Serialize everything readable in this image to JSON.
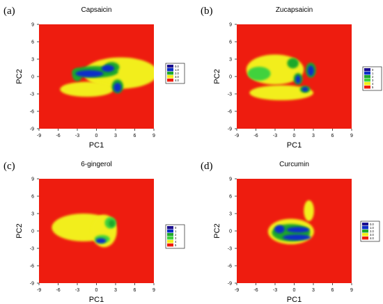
{
  "figure": {
    "panels": [
      {
        "letter": "(a)",
        "title": "Capsaicin",
        "xlabel": "PC1",
        "ylabel": "PC2",
        "ticks": [
          "-9",
          "-6",
          "-3",
          "0",
          "3",
          "6",
          "9"
        ],
        "legend": [
          "0.0",
          "1.0",
          "2.0",
          "3.0",
          "4.0"
        ]
      },
      {
        "letter": "(b)",
        "title": "Zucapsaicin",
        "xlabel": "PC1",
        "ylabel": "PC2",
        "ticks": [
          "-9",
          "-6",
          "-3",
          "0",
          "3",
          "6",
          "9"
        ],
        "legend": [
          "0",
          "1",
          "2",
          "3",
          "4",
          "5"
        ]
      },
      {
        "letter": "(c)",
        "title": "6-gingerol",
        "xlabel": "PC1",
        "ylabel": "PC2",
        "ticks": [
          "-9",
          "-6",
          "-3",
          "0",
          "3",
          "6",
          "9"
        ],
        "legend": [
          "0",
          "1",
          "2",
          "3",
          "4",
          "5"
        ]
      },
      {
        "letter": "(d)",
        "title": "Curcumin",
        "xlabel": "PC1",
        "ylabel": "PC2",
        "ticks": [
          "-9",
          "-6",
          "-3",
          "0",
          "3",
          "6",
          "9"
        ],
        "legend": [
          "0.0",
          "1.0",
          "2.0",
          "3.0",
          "4.0"
        ]
      }
    ]
  },
  "chart_data": [
    {
      "type": "heatmap",
      "title": "Capsaicin",
      "xlabel": "PC1",
      "ylabel": "PC2",
      "xlim": [
        -9,
        9
      ],
      "ylim": [
        -9,
        9
      ],
      "xticks": [
        -9,
        -6,
        -3,
        0,
        3,
        6,
        9
      ],
      "yticks": [
        -9,
        -6,
        -3,
        0,
        3,
        6,
        9
      ],
      "colorscale": [
        {
          "value": 0.0,
          "color": "#1a0d8f"
        },
        {
          "value": 1.0,
          "color": "#0a2fc8"
        },
        {
          "value": 2.0,
          "color": "#1fa82a"
        },
        {
          "value": 3.0,
          "color": "#f2ee1a"
        },
        {
          "value": 4.0,
          "color": "#ee1c0f"
        }
      ],
      "regions": [
        {
          "x": 3.8,
          "y": 0.6,
          "rx": 5.8,
          "ry": 2.7,
          "level": 3.0
        },
        {
          "x": -1.5,
          "y": -2.2,
          "rx": 4.2,
          "ry": 1.3,
          "level": 3.0
        },
        {
          "x": -0.2,
          "y": 0.8,
          "rx": 3.6,
          "ry": 1.0,
          "level": 2.0
        },
        {
          "x": 2.4,
          "y": 1.6,
          "rx": 1.2,
          "ry": 0.9,
          "level": 2.0
        },
        {
          "x": 3.3,
          "y": -1.7,
          "rx": 0.9,
          "ry": 1.2,
          "level": 2.0
        },
        {
          "x": -3.0,
          "y": 0.3,
          "rx": 0.8,
          "ry": 1.1,
          "level": 2.0
        },
        {
          "x": -1.1,
          "y": 0.5,
          "rx": 2.2,
          "ry": 0.6,
          "level": 1.0
        },
        {
          "x": 1.8,
          "y": 1.4,
          "rx": 1.0,
          "ry": 0.6,
          "level": 1.0
        },
        {
          "x": 3.3,
          "y": -1.9,
          "rx": 0.6,
          "ry": 0.8,
          "level": 1.0
        }
      ]
    },
    {
      "type": "heatmap",
      "title": "Zucapsaicin",
      "xlabel": "PC1",
      "ylabel": "PC2",
      "xlim": [
        -9,
        9
      ],
      "ylim": [
        -9,
        9
      ],
      "xticks": [
        -9,
        -6,
        -3,
        0,
        3,
        6,
        9
      ],
      "yticks": [
        -9,
        -6,
        -3,
        0,
        3,
        6,
        9
      ],
      "colorscale": [
        {
          "value": 0,
          "color": "#1a0d8f"
        },
        {
          "value": 1,
          "color": "#0a2fc8"
        },
        {
          "value": 2,
          "color": "#1fa82a"
        },
        {
          "value": 3,
          "color": "#3fd23c"
        },
        {
          "value": 4,
          "color": "#f2ee1a"
        },
        {
          "value": 5,
          "color": "#ee1c0f"
        }
      ],
      "regions": [
        {
          "x": -3.0,
          "y": 1.2,
          "rx": 4.5,
          "ry": 2.6,
          "level": 4
        },
        {
          "x": -2.0,
          "y": -2.8,
          "rx": 5.0,
          "ry": 1.3,
          "level": 4
        },
        {
          "x": -5.5,
          "y": 0.5,
          "rx": 1.8,
          "ry": 1.2,
          "level": 3
        },
        {
          "x": -0.2,
          "y": 2.3,
          "rx": 0.9,
          "ry": 0.9,
          "level": 2
        },
        {
          "x": 2.6,
          "y": 1.1,
          "rx": 0.8,
          "ry": 1.3,
          "level": 2
        },
        {
          "x": 1.7,
          "y": -2.2,
          "rx": 0.8,
          "ry": 0.6,
          "level": 2
        },
        {
          "x": 0.6,
          "y": -0.4,
          "rx": 0.7,
          "ry": 1.0,
          "level": 2
        },
        {
          "x": 0.6,
          "y": -0.5,
          "rx": 0.4,
          "ry": 0.7,
          "level": 1
        },
        {
          "x": 2.6,
          "y": 1.0,
          "rx": 0.5,
          "ry": 0.9,
          "level": 1
        },
        {
          "x": 1.7,
          "y": -2.2,
          "rx": 0.5,
          "ry": 0.4,
          "level": 1
        }
      ]
    },
    {
      "type": "heatmap",
      "title": "6-gingerol",
      "xlabel": "PC1",
      "ylabel": "PC2",
      "xlim": [
        -9,
        9
      ],
      "ylim": [
        -9,
        9
      ],
      "xticks": [
        -9,
        -6,
        -3,
        0,
        3,
        6,
        9
      ],
      "yticks": [
        -9,
        -6,
        -3,
        0,
        3,
        6,
        9
      ],
      "colorscale": [
        {
          "value": 0,
          "color": "#1a0d8f"
        },
        {
          "value": 1,
          "color": "#0a2fc8"
        },
        {
          "value": 2,
          "color": "#1fa82a"
        },
        {
          "value": 3,
          "color": "#3fd23c"
        },
        {
          "value": 4,
          "color": "#f2ee1a"
        },
        {
          "value": 5,
          "color": "#ee1c0f"
        }
      ],
      "regions": [
        {
          "x": -2.0,
          "y": 0.6,
          "rx": 5.0,
          "ry": 2.4,
          "level": 4
        },
        {
          "x": 1.2,
          "y": 0.0,
          "rx": 2.0,
          "ry": 2.8,
          "level": 4
        },
        {
          "x": 2.2,
          "y": 1.4,
          "rx": 0.9,
          "ry": 1.0,
          "level": 3
        },
        {
          "x": 0.9,
          "y": -1.4,
          "rx": 1.2,
          "ry": 0.7,
          "level": 3
        },
        {
          "x": 0.7,
          "y": -1.7,
          "rx": 0.8,
          "ry": 0.45,
          "level": 1
        },
        {
          "x": 2.4,
          "y": 1.3,
          "rx": 0.5,
          "ry": 0.6,
          "level": 2
        }
      ]
    },
    {
      "type": "heatmap",
      "title": "Curcumin",
      "xlabel": "PC1",
      "ylabel": "PC2",
      "xlim": [
        -9,
        9
      ],
      "ylim": [
        -9,
        9
      ],
      "xticks": [
        -9,
        -6,
        -3,
        0,
        3,
        6,
        9
      ],
      "yticks": [
        -9,
        -6,
        -3,
        0,
        3,
        6,
        9
      ],
      "colorscale": [
        {
          "value": 0.0,
          "color": "#1a0d8f"
        },
        {
          "value": 1.0,
          "color": "#0a2fc8"
        },
        {
          "value": 2.0,
          "color": "#1fa82a"
        },
        {
          "value": 3.0,
          "color": "#f2ee1a"
        },
        {
          "value": 4.0,
          "color": "#ee1c0f"
        }
      ],
      "regions": [
        {
          "x": -0.5,
          "y": -0.1,
          "rx": 3.6,
          "ry": 2.2,
          "level": 3.0
        },
        {
          "x": 2.3,
          "y": 3.5,
          "rx": 0.8,
          "ry": 1.8,
          "level": 3.0
        },
        {
          "x": -0.5,
          "y": -0.3,
          "rx": 3.0,
          "ry": 1.5,
          "level": 2.0
        },
        {
          "x": -2.3,
          "y": 0.3,
          "rx": 0.8,
          "ry": 0.7,
          "level": 1.0
        },
        {
          "x": 0.4,
          "y": -1.1,
          "rx": 2.2,
          "ry": 0.5,
          "level": 1.0
        },
        {
          "x": 0.6,
          "y": 0.2,
          "rx": 1.8,
          "ry": 0.5,
          "level": 1.0
        }
      ]
    }
  ]
}
